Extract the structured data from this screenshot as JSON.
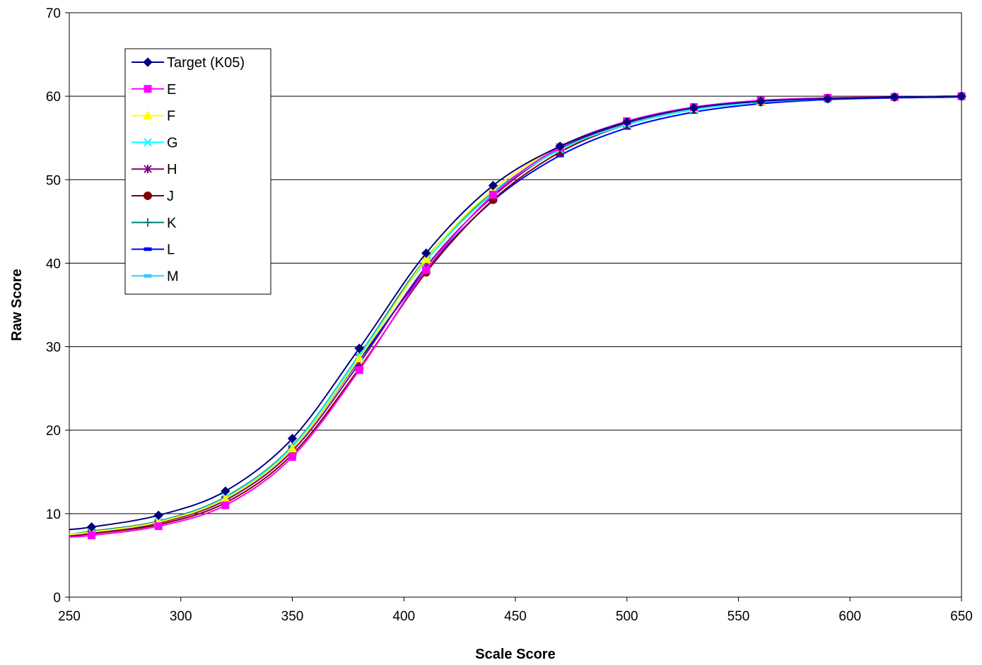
{
  "chart_data": {
    "type": "line",
    "title": "",
    "xlabel": "Scale Score",
    "ylabel": "Raw Score",
    "xlim": [
      250,
      650
    ],
    "ylim": [
      0,
      70
    ],
    "xticks": [
      250,
      300,
      350,
      400,
      450,
      500,
      550,
      600,
      650
    ],
    "yticks": [
      0,
      10,
      20,
      30,
      40,
      50,
      60,
      70
    ],
    "grid": "horizontal",
    "legend_position": "top-left",
    "x": [
      250,
      260,
      290,
      320,
      350,
      380,
      410,
      440,
      470,
      500,
      530,
      560,
      590,
      620,
      650
    ],
    "series": [
      {
        "name": "Target (K05)",
        "color": "#000080",
        "marker": "diamond",
        "values": [
          8.1,
          8.4,
          9.8,
          12.7,
          19.0,
          29.8,
          41.2,
          49.3,
          54.0,
          56.9,
          58.6,
          59.4,
          59.7,
          59.9,
          60.0
        ]
      },
      {
        "name": "E",
        "color": "#FF00FF",
        "marker": "square",
        "values": [
          7.2,
          7.4,
          8.5,
          11.0,
          16.8,
          27.2,
          39.2,
          48.2,
          53.9,
          57.0,
          58.7,
          59.5,
          59.8,
          59.9,
          60.0
        ]
      },
      {
        "name": "F",
        "color": "#FFFF00",
        "marker": "triangle",
        "values": [
          7.5,
          7.8,
          9.0,
          11.8,
          17.8,
          28.6,
          40.5,
          48.8,
          54.0,
          56.9,
          58.6,
          59.4,
          59.8,
          59.9,
          60.0
        ]
      },
      {
        "name": "G",
        "color": "#00FFFF",
        "marker": "x",
        "values": [
          7.5,
          7.8,
          9.0,
          11.9,
          18.0,
          28.9,
          40.3,
          48.4,
          53.6,
          56.6,
          58.4,
          59.3,
          59.7,
          59.9,
          60.0
        ]
      },
      {
        "name": "H",
        "color": "#800080",
        "marker": "asterisk",
        "values": [
          7.4,
          7.7,
          8.9,
          11.6,
          17.5,
          28.0,
          39.6,
          48.0,
          53.7,
          56.8,
          58.6,
          59.4,
          59.8,
          59.9,
          60.0
        ]
      },
      {
        "name": "J",
        "color": "#800000",
        "marker": "circle",
        "values": [
          7.3,
          7.6,
          8.7,
          11.3,
          17.1,
          27.4,
          38.9,
          47.6,
          53.3,
          56.6,
          58.4,
          59.3,
          59.7,
          59.9,
          60.0
        ]
      },
      {
        "name": "K",
        "color": "#008080",
        "marker": "plus",
        "values": [
          7.5,
          7.9,
          9.1,
          12.0,
          18.1,
          29.0,
          40.6,
          48.5,
          53.6,
          56.6,
          58.4,
          59.3,
          59.7,
          59.9,
          60.0
        ]
      },
      {
        "name": "L",
        "color": "#0000FF",
        "marker": "dash",
        "values": [
          7.4,
          7.7,
          8.9,
          11.8,
          17.8,
          28.4,
          39.2,
          47.5,
          52.9,
          56.2,
          58.1,
          59.1,
          59.6,
          59.8,
          59.9
        ]
      },
      {
        "name": "M",
        "color": "#33CCFF",
        "marker": "dash",
        "values": [
          7.5,
          7.8,
          9.0,
          11.9,
          17.9,
          28.5,
          39.3,
          47.5,
          52.9,
          56.2,
          58.1,
          59.1,
          59.6,
          59.8,
          59.9
        ]
      }
    ]
  }
}
